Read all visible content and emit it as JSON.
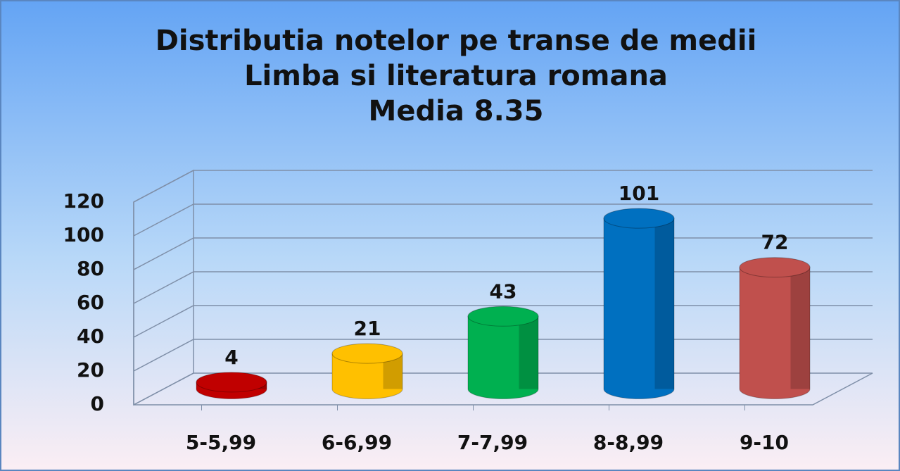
{
  "chart_data": {
    "type": "bar3d",
    "title": [
      "Distributia notelor pe transe de medii",
      "Limba si literatura romana",
      "Media 8.35"
    ],
    "categories": [
      "5-5,99",
      "6-6,99",
      "7-7,99",
      "8-8,99",
      "9-10"
    ],
    "values": [
      4,
      21,
      43,
      101,
      72
    ],
    "colors": [
      "#c00000",
      "#ffc000",
      "#00b050",
      "#0070c0",
      "#c0504d"
    ],
    "ylim": [
      0,
      120
    ],
    "yticks": [
      0,
      20,
      40,
      60,
      80,
      100,
      120
    ],
    "grid": true
  }
}
